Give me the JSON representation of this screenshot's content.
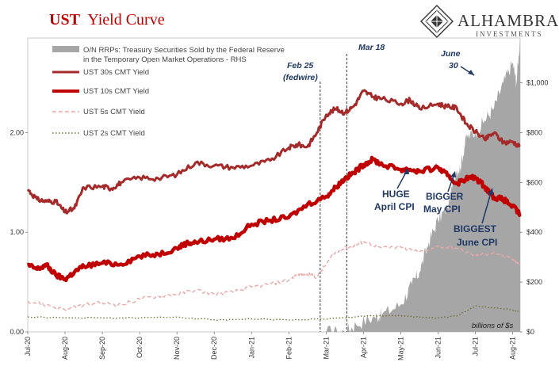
{
  "title": {
    "part1": "UST",
    "part2": "Yield Curve"
  },
  "logo": {
    "name": "ALHAMBRA",
    "subtitle": "INVESTMENTS"
  },
  "units_note": "billions of $s",
  "colors": {
    "ust30": "#a52a2a",
    "ust10": "#c00000",
    "ust5": "#e8a8a8",
    "ust2": "#6b6b2a",
    "rrp": "#a6a6a6",
    "annotation": "#1f3864",
    "title": "#c00000"
  },
  "legend": [
    {
      "label": "O/N RRPs: Treasury Securities Sold by the Federal Reserve",
      "label2": "in the Temporary Open Market Operations - RHS",
      "style": "area"
    },
    {
      "label": "UST 30s CMT Yield",
      "style": "thick"
    },
    {
      "label": "UST 10s CMT Yield",
      "style": "thicker"
    },
    {
      "label": "UST 5s CMT Yield",
      "style": "dashed"
    },
    {
      "label": "UST 2s CMT Yield",
      "style": "dotted"
    }
  ],
  "annotations": {
    "feb25_l1": "Feb 25",
    "feb25_l2": "(fedwire)",
    "mar18": "Mar 18",
    "june30_l1": "June",
    "june30_l2": "30",
    "huge_l1": "HUGE",
    "huge_l2": "April CPI",
    "bigger_l1": "BIGGER",
    "bigger_l2": "May CPI",
    "biggest_l1": "BIGGEST",
    "biggest_l2": "June CPI"
  },
  "chart_data": {
    "type": "line",
    "x_tick_labels": [
      "Jul-20",
      "Aug-20",
      "Sep-20",
      "Oct-20",
      "Nov-20",
      "Dec-20",
      "Jan-21",
      "Feb-21",
      "Mar-21",
      "Apr-21",
      "May-21",
      "Jun-21",
      "Jul-21",
      "Aug-21"
    ],
    "left_axis": {
      "ticks": [
        "0.00",
        "1.00",
        "2.00"
      ],
      "ylim": [
        0,
        2.95
      ]
    },
    "right_axis": {
      "ticks": [
        "$0",
        "$200",
        "$400",
        "$600",
        "$800",
        "$1,000"
      ],
      "ylim": [
        0,
        1180
      ]
    },
    "series": [
      {
        "name": "UST 30s CMT Yield",
        "axis": "left",
        "x": [
          0,
          0.25,
          0.5,
          0.75,
          1,
          1.25,
          1.5,
          2,
          2.25,
          2.5,
          3,
          3.5,
          4,
          4.5,
          5,
          5.5,
          6,
          6.5,
          7,
          7.25,
          7.5,
          7.75,
          8,
          8.25,
          8.5,
          8.75,
          9,
          9.25,
          9.5,
          10,
          10.25,
          10.5,
          11,
          11.25,
          11.5,
          11.75,
          12,
          12.25,
          12.5,
          12.75,
          13,
          13.2
        ],
        "values": [
          1.43,
          1.33,
          1.31,
          1.31,
          1.2,
          1.24,
          1.45,
          1.46,
          1.44,
          1.5,
          1.55,
          1.54,
          1.58,
          1.7,
          1.67,
          1.65,
          1.67,
          1.72,
          1.85,
          1.88,
          1.86,
          2.0,
          2.18,
          2.24,
          2.2,
          2.27,
          2.42,
          2.36,
          2.34,
          2.29,
          2.33,
          2.24,
          2.29,
          2.26,
          2.25,
          2.09,
          2.01,
          1.93,
          2.0,
          1.9,
          1.91,
          1.86
        ]
      },
      {
        "name": "UST 10s CMT Yield",
        "axis": "left",
        "x": [
          0,
          0.25,
          0.5,
          0.75,
          1,
          1.25,
          1.5,
          2,
          2.5,
          3,
          3.5,
          4,
          4.25,
          4.5,
          5,
          5.5,
          6,
          6.5,
          7,
          7.5,
          8,
          8.25,
          8.5,
          8.75,
          9,
          9.25,
          9.5,
          10,
          10.25,
          10.5,
          11,
          11.25,
          11.5,
          11.75,
          12,
          12.25,
          12.5,
          12.75,
          13,
          13.2
        ],
        "values": [
          0.67,
          0.63,
          0.67,
          0.57,
          0.53,
          0.6,
          0.66,
          0.69,
          0.68,
          0.76,
          0.78,
          0.84,
          0.89,
          0.9,
          0.93,
          0.94,
          1.08,
          1.12,
          1.15,
          1.28,
          1.36,
          1.45,
          1.54,
          1.6,
          1.68,
          1.73,
          1.68,
          1.63,
          1.63,
          1.61,
          1.65,
          1.57,
          1.49,
          1.54,
          1.55,
          1.46,
          1.35,
          1.33,
          1.26,
          1.18
        ]
      },
      {
        "name": "UST 5s CMT Yield",
        "axis": "left",
        "x": [
          0,
          0.5,
          1,
          1.5,
          2,
          2.5,
          3,
          3.5,
          4,
          4.5,
          5,
          5.5,
          6,
          6.5,
          7,
          7.25,
          7.5,
          7.75,
          8,
          8.25,
          8.5,
          8.75,
          9,
          9.5,
          10,
          10.5,
          11,
          11.5,
          12,
          12.5,
          13,
          13.2
        ],
        "values": [
          0.31,
          0.27,
          0.22,
          0.27,
          0.29,
          0.27,
          0.33,
          0.36,
          0.38,
          0.42,
          0.38,
          0.4,
          0.45,
          0.48,
          0.52,
          0.58,
          0.58,
          0.55,
          0.68,
          0.8,
          0.84,
          0.86,
          0.91,
          0.84,
          0.85,
          0.8,
          0.86,
          0.84,
          0.76,
          0.8,
          0.72,
          0.68
        ]
      },
      {
        "name": "UST 2s CMT Yield",
        "axis": "left",
        "x": [
          0,
          1,
          2,
          3,
          4,
          5,
          6,
          7,
          8,
          8.5,
          9,
          9.5,
          10,
          10.5,
          11,
          11.5,
          12,
          12.5,
          13,
          13.2
        ],
        "values": [
          0.15,
          0.14,
          0.14,
          0.14,
          0.15,
          0.12,
          0.13,
          0.12,
          0.13,
          0.14,
          0.16,
          0.16,
          0.16,
          0.15,
          0.14,
          0.16,
          0.26,
          0.24,
          0.22,
          0.2
        ]
      },
      {
        "name": "O/N RRPs: Treasury Securities Sold by the Federal Reserve in the Temporary Open Market Operations - RHS",
        "axis": "right",
        "x": [
          8,
          8.5,
          8.8,
          9.3,
          9.5,
          10,
          10.3,
          10.5,
          10.75,
          11,
          11.25,
          11.5,
          11.6,
          11.75,
          12,
          12.25,
          12.5,
          12.75,
          13,
          13.1,
          13.2
        ],
        "values": [
          0,
          0,
          30,
          60,
          70,
          110,
          190,
          240,
          360,
          450,
          500,
          650,
          660,
          780,
          800,
          850,
          900,
          1000,
          1080,
          1000,
          1180
        ]
      }
    ],
    "vlines": [
      {
        "label": "Feb 25 (fedwire)",
        "x": 7.84
      },
      {
        "label": "Mar 18",
        "x": 8.55
      }
    ]
  }
}
